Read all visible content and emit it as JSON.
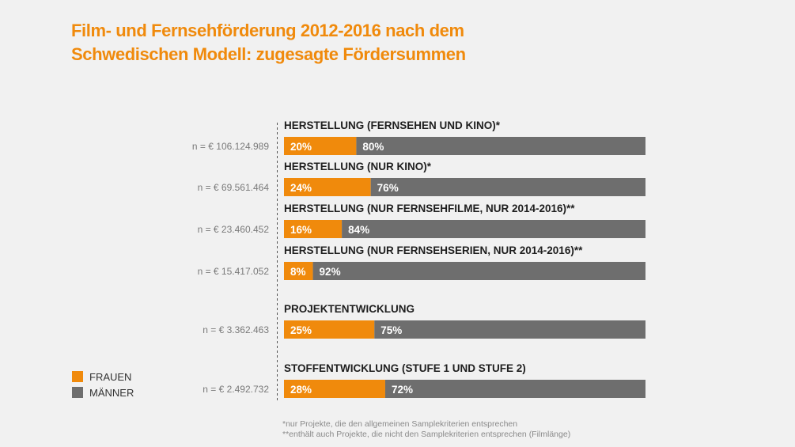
{
  "title_lines": [
    "Film- und Fernsehförderung 2012-2016 nach dem",
    "Schwedischen Modell: zugesagte Fördersummen"
  ],
  "colors": {
    "accent": "#f08a0c",
    "frauen": "#f08a0c",
    "maenner": "#6e6e6e",
    "background": "#f1f1f1"
  },
  "legend": [
    {
      "label": "FRAUEN",
      "color": "#f08a0c"
    },
    {
      "label": "MÄNNER",
      "color": "#6e6e6e"
    }
  ],
  "chart_data": {
    "type": "bar",
    "orientation": "horizontal",
    "stacked": true,
    "title": "Film- und Fernsehförderung 2012-2016 nach dem Schwedischen Modell: zugesagte Fördersummen",
    "xlim": [
      0,
      100
    ],
    "unit": "%",
    "categories": [
      "HERSTELLUNG (FERNSEHEN UND KINO)*",
      "HERSTELLUNG (NUR KINO)*",
      "HERSTELLUNG (NUR FERNSEHFILME, NUR 2014-2016)**",
      "HERSTELLUNG (NUR FERNSEHSERIEN, NUR 2014-2016)**",
      "PROJEKTENTWICKLUNG",
      "STOFFENTWICKLUNG (STUFE 1 UND STUFE 2)"
    ],
    "totals": [
      "n = € 106.124.989",
      "n = € 69.561.464",
      "n = € 23.460.452",
      "n = € 15.417.052",
      "n = € 3.362.463",
      "n = € 2.492.732"
    ],
    "series": [
      {
        "name": "FRAUEN",
        "values": [
          20,
          24,
          16,
          8,
          25,
          28
        ]
      },
      {
        "name": "MÄNNER",
        "values": [
          80,
          76,
          84,
          92,
          75,
          72
        ]
      }
    ]
  },
  "footnotes": [
    "*nur Projekte, die den allgemeinen Samplekriterien entsprechen",
    "**enthält auch Projekte, die nicht den Samplekriterien entsprechen (Filmlänge)"
  ]
}
